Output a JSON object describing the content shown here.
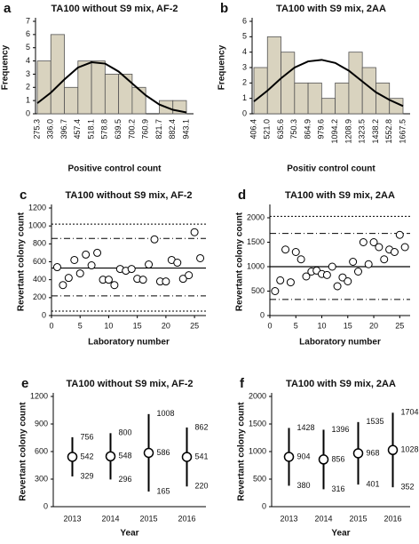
{
  "chart_data": [
    {
      "type": "histogram",
      "panel": "a",
      "title": "TA100 without S9 mix, AF-2",
      "xlabel": "Positive control count",
      "ylabel": "Frequency",
      "bins": [
        275.3,
        {
          "value": 336,
          "label": "336.0"
        },
        396.7,
        457.4,
        518.1,
        578.8,
        639.5,
        700.2,
        760.9,
        821.7,
        882.4,
        943.1
      ],
      "values": [
        4,
        6,
        2,
        4,
        4,
        3,
        3,
        2,
        0,
        1,
        1
      ],
      "curve_values": [
        0.8,
        1.6,
        2.6,
        3.5,
        3.9,
        3.8,
        3.2,
        2.3,
        1.4,
        0.7,
        0.3,
        0.1
      ],
      "color": "#d9d3bf",
      "ylim": [
        0,
        7
      ],
      "yticks": [
        0,
        1,
        2,
        3,
        4,
        5,
        6,
        7
      ]
    },
    {
      "type": "histogram",
      "panel": "b",
      "title": "TA100 with S9 mix, 2AA",
      "xlabel": "Positiv control count",
      "ylabel": "Frequency",
      "bins": [
        406.4,
        {
          "value": 521,
          "label": "521.0"
        },
        635.6,
        750.3,
        864.9,
        979.6,
        1094.2,
        1208.9,
        1323.5,
        1438.2,
        1552.8,
        1667.5
      ],
      "values": [
        3,
        5,
        4,
        2,
        2,
        1,
        2,
        4,
        3,
        2,
        1
      ],
      "curve_values": [
        0.8,
        1.5,
        2.3,
        3.0,
        3.4,
        3.5,
        3.3,
        2.8,
        2.1,
        1.4,
        0.9,
        0.5
      ],
      "color": "#d9d3bf",
      "ylim": [
        0,
        6
      ],
      "yticks": [
        0,
        1,
        2,
        3,
        4,
        5,
        6
      ]
    },
    {
      "type": "scatter",
      "panel": "c",
      "title": "TA100 without S9 mix, AF-2",
      "xlabel": "Laboratory number",
      "ylabel": "Revertant colony count",
      "x": [
        1,
        2,
        3,
        4,
        5,
        6,
        7,
        8,
        9,
        10,
        11,
        12,
        13,
        14,
        15,
        16,
        17,
        18,
        19,
        20,
        21,
        22,
        23,
        24,
        25,
        26
      ],
      "values": [
        540,
        340,
        420,
        620,
        470,
        680,
        560,
        700,
        400,
        400,
        340,
        520,
        500,
        520,
        410,
        400,
        570,
        850,
        380,
        380,
        620,
        590,
        410,
        450,
        930,
        640
      ],
      "ref_lines": [
        {
          "value": 530,
          "style": "solid"
        },
        {
          "value": 860,
          "style": "dashdot"
        },
        {
          "value": 220,
          "style": "dashdot"
        },
        {
          "value": 1020,
          "style": "dotted"
        },
        {
          "value": 50,
          "style": "dotted"
        }
      ],
      "xlim": [
        0,
        27
      ],
      "xticks": [
        0,
        5,
        10,
        15,
        20,
        25
      ],
      "ylim": [
        0,
        1200
      ],
      "yticks": [
        0,
        200,
        400,
        600,
        800,
        1000,
        1200
      ]
    },
    {
      "type": "scatter",
      "panel": "d",
      "title": "TA100 with S9 mix, 2AA",
      "xlabel": "Laboratory number",
      "ylabel": "Revertant colony count",
      "x": [
        1,
        2,
        3,
        4,
        5,
        6,
        7,
        8,
        9,
        10,
        11,
        12,
        13,
        14,
        15,
        16,
        17,
        18,
        19,
        20,
        21,
        22,
        23,
        24,
        25,
        26
      ],
      "values": [
        500,
        720,
        1350,
        680,
        1300,
        1150,
        800,
        900,
        920,
        850,
        830,
        1000,
        600,
        780,
        700,
        1100,
        900,
        1500,
        1050,
        1500,
        1400,
        1150,
        1350,
        1300,
        1650,
        1400
      ],
      "ref_lines": [
        {
          "value": 1000,
          "style": "solid"
        },
        {
          "value": 1680,
          "style": "dashdot"
        },
        {
          "value": 330,
          "style": "dashdot"
        },
        {
          "value": 2030,
          "style": "dotted"
        },
        {
          "value": 0,
          "style": "dotted"
        }
      ],
      "xlim": [
        0,
        27
      ],
      "xticks": [
        0,
        5,
        10,
        15,
        20,
        25
      ],
      "ylim": [
        0,
        2200
      ],
      "yticks": [
        0,
        500,
        1000,
        1500,
        2000
      ]
    },
    {
      "type": "errorbar",
      "panel": "e",
      "title": "TA100 without S9 mix, AF-2",
      "xlabel": "Year",
      "ylabel": "Revertant colony count",
      "categories": [
        "2013",
        "2014",
        "2015",
        "2016"
      ],
      "values": [
        542,
        548,
        586,
        541
      ],
      "upper": [
        756,
        800,
        1008,
        862
      ],
      "lower": [
        329,
        296,
        165,
        220
      ],
      "ylim": [
        0,
        1200
      ],
      "yticks": [
        0,
        300,
        600,
        900,
        1200
      ]
    },
    {
      "type": "errorbar",
      "panel": "f",
      "title": "TA100 with S9 mix, 2AA",
      "xlabel": "Year",
      "ylabel": "Revertant colony count",
      "categories": [
        "2013",
        "2014",
        "2015",
        "2016"
      ],
      "values": [
        904,
        856,
        968,
        1028
      ],
      "upper": [
        1428,
        1396,
        1535,
        1704
      ],
      "lower": [
        380,
        316,
        401,
        352
      ],
      "ylim": [
        0,
        2000
      ],
      "yticks": [
        0,
        500,
        1000,
        1500,
        2000
      ]
    }
  ]
}
